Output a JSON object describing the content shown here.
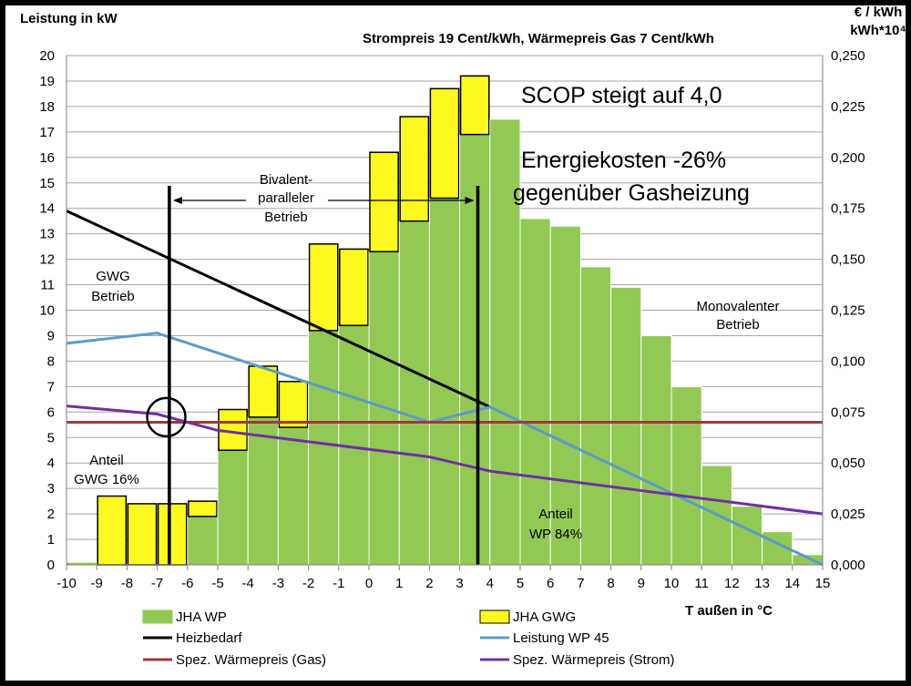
{
  "chart_data": {
    "type": "bar",
    "title": "Strompreis 19 Cent/kWh, Wärmepreis Gas 7 Cent/kWh",
    "ylabel": "Leistung in kW",
    "y2label_line1": "€ / kWh",
    "y2label_line2": "kWh*10⁴",
    "xlabel": "T außen in °C",
    "ylim": [
      0,
      20
    ],
    "y2lim": [
      0,
      0.25
    ],
    "xlim": [
      -10,
      15
    ],
    "grid": "horizontal",
    "legend_position": "bottom",
    "x_ticks": [
      -10,
      -9,
      -8,
      -7,
      -6,
      -5,
      -4,
      -3,
      -2,
      -1,
      0,
      1,
      2,
      3,
      4,
      5,
      6,
      7,
      8,
      9,
      10,
      11,
      12,
      13,
      14,
      15
    ],
    "y_ticks": [
      0,
      1,
      2,
      3,
      4,
      5,
      6,
      7,
      8,
      9,
      10,
      11,
      12,
      13,
      14,
      15,
      16,
      17,
      18,
      19,
      20
    ],
    "y2_ticks": [
      "0,000",
      "0,025",
      "0,050",
      "0,075",
      "0,100",
      "0,125",
      "0,150",
      "0,175",
      "0,200",
      "0,225",
      "0,250"
    ],
    "categories": [
      -10,
      -9,
      -8,
      -7,
      -6,
      -5,
      -4,
      -3,
      -2,
      -1,
      0,
      1,
      2,
      3,
      4,
      5,
      6,
      7,
      8,
      9,
      10,
      11,
      12,
      13,
      14
    ],
    "series": [
      {
        "name": "JHA WP",
        "kind": "stacked-bar",
        "color": "#92c955",
        "values": [
          0.1,
          0,
          0,
          0,
          1.9,
          4.5,
          5.8,
          5.4,
          9.2,
          9.4,
          12.3,
          13.5,
          14.4,
          16.9,
          17.5,
          13.6,
          13.3,
          11.7,
          10.9,
          9.0,
          7.0,
          3.9,
          2.3,
          1.3,
          0.4
        ]
      },
      {
        "name": "JHA GWG",
        "kind": "stacked-bar",
        "color": "#fdf81e",
        "values": [
          0,
          2.7,
          2.4,
          2.4,
          0.6,
          1.6,
          2.0,
          1.8,
          3.4,
          3.0,
          3.9,
          4.1,
          4.3,
          2.3,
          0,
          0,
          0,
          0,
          0,
          0,
          0,
          0,
          0,
          0,
          0
        ]
      },
      {
        "name": "Heizbedarf",
        "kind": "line",
        "color": "#000000",
        "x": [
          -10,
          4
        ],
        "y": [
          13.9,
          6.2
        ]
      },
      {
        "name": "Leistung WP 45",
        "kind": "line",
        "color": "#5b9bc6",
        "x": [
          -10,
          -7,
          2,
          4,
          15
        ],
        "y": [
          8.7,
          9.1,
          5.6,
          6.2,
          0
        ]
      },
      {
        "name": "Spez. Wärmepreis (Gas)",
        "kind": "line",
        "axis": "right",
        "color": "#9e3a38",
        "x": [
          -10,
          15
        ],
        "y": [
          0.07,
          0.07
        ]
      },
      {
        "name": "Spez. Wärmepreis (Strom)",
        "kind": "line",
        "axis": "right",
        "color": "#7030a0",
        "x": [
          -10,
          -7,
          -5,
          2,
          4,
          15
        ],
        "y": [
          0.078,
          0.074,
          0.066,
          0.053,
          0.046,
          0.025
        ]
      }
    ],
    "vertical_markers": [
      -6.6,
      3.6
    ],
    "circle_marker": {
      "x": -6.7,
      "y": 5.8
    },
    "annotations": {
      "scop": "SCOP steigt auf 4,0",
      "cost_line1": "Energiekosten -26%",
      "cost_line2": "gegenüber Gasheizung",
      "bivalent_line1": "Bivalent-",
      "bivalent_line2": "paralleler",
      "bivalent_line3": "Betrieb",
      "gwg_line1": "GWG",
      "gwg_line2": "Betrieb",
      "mono_line1": "Monovalenter",
      "mono_line2": "Betrieb",
      "anteil_gwg_line1": "Anteil",
      "anteil_gwg_line2": "GWG 16%",
      "anteil_wp_line1": "Anteil",
      "anteil_wp_line2": "WP 84%"
    },
    "legend": [
      {
        "label": "JHA WP",
        "swatch": "box",
        "color": "#92c955"
      },
      {
        "label": "JHA GWG",
        "swatch": "box",
        "color": "#fdf81e"
      },
      {
        "label": "Heizbedarf",
        "swatch": "line",
        "color": "#000000"
      },
      {
        "label": "Leistung WP 45",
        "swatch": "line",
        "color": "#5b9bc6"
      },
      {
        "label": "Spez. Wärmepreis (Gas)",
        "swatch": "line",
        "color": "#9e3a38"
      },
      {
        "label": "Spez. Wärmepreis (Strom)",
        "swatch": "line",
        "color": "#7030a0"
      }
    ]
  }
}
